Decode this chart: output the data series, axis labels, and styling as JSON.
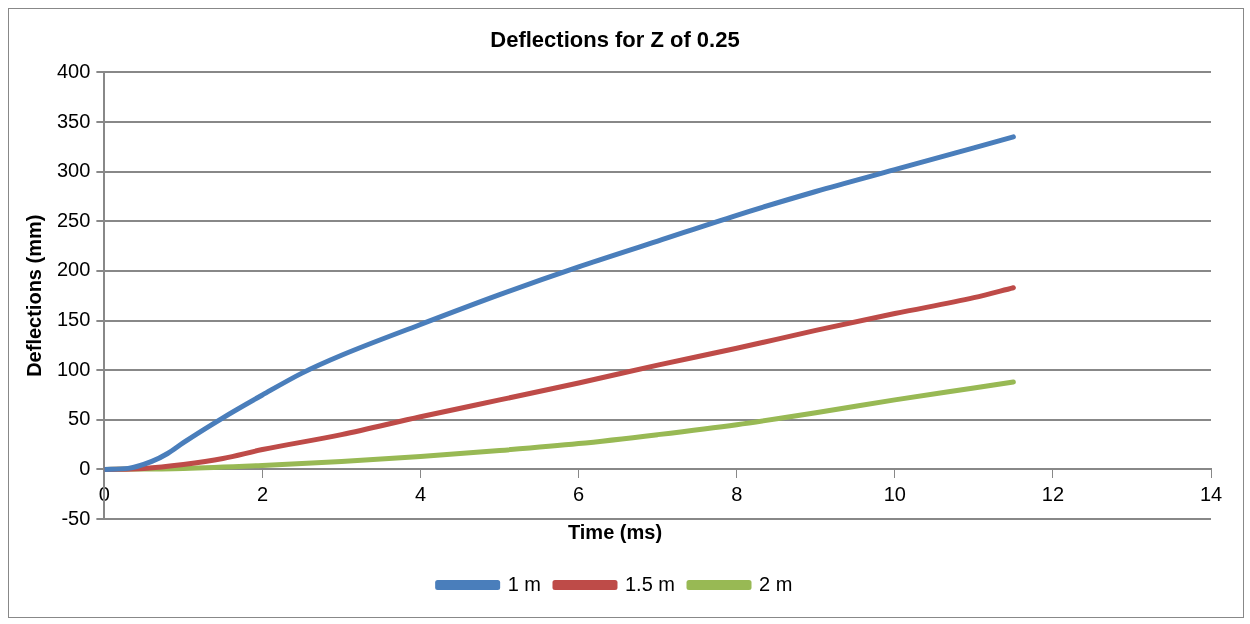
{
  "chart_data": {
    "type": "line",
    "title": "Deflections for Z of 0.25",
    "xlabel": "Time (ms)",
    "ylabel": "Deflections (mm)",
    "xlim": [
      0,
      14
    ],
    "xticks": [
      0,
      2,
      4,
      6,
      8,
      10,
      12,
      14
    ],
    "ylim": [
      -50,
      400
    ],
    "yticks": [
      -50,
      0,
      50,
      100,
      150,
      200,
      250,
      300,
      350,
      400
    ],
    "grid": "y",
    "legend": "bottom",
    "marker": "none",
    "line_style": "solid",
    "series": [
      {
        "name": "1 m",
        "color": "#4a7ebb",
        "x": [
          0,
          0.3,
          0.6,
          0.8,
          1,
          1.5,
          2,
          2.5,
          3,
          4,
          5,
          6,
          7,
          8,
          9,
          10,
          11,
          11.5
        ],
        "values": [
          0,
          1,
          8,
          16,
          27,
          52,
          75,
          97,
          115,
          146,
          176,
          204,
          230,
          256,
          280,
          302,
          324,
          335
        ]
      },
      {
        "name": "1.5 m",
        "color": "#be4b48",
        "x": [
          0,
          0.5,
          1,
          1.5,
          2,
          3,
          4,
          5,
          6,
          7,
          8,
          9,
          10,
          11,
          11.5
        ],
        "values": [
          0,
          1,
          5,
          11,
          20,
          35,
          53,
          70,
          87,
          105,
          122,
          140,
          157,
          173,
          183
        ]
      },
      {
        "name": "2 m",
        "color": "#98b954",
        "x": [
          0,
          1,
          2,
          3,
          4,
          5,
          6,
          7,
          8,
          9,
          10,
          11,
          11.5
        ],
        "values": [
          0,
          1,
          4,
          8,
          13,
          19,
          26,
          35,
          45,
          57,
          70,
          82,
          88
        ]
      }
    ]
  }
}
